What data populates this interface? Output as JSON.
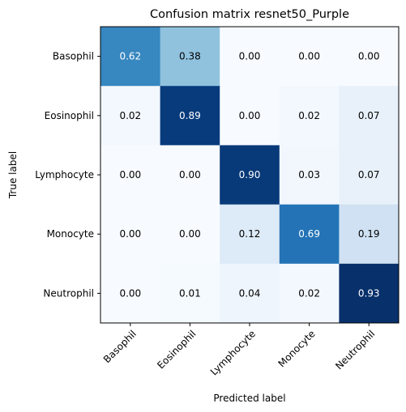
{
  "chart_data": {
    "type": "heatmap",
    "title": "Confusion matrix resnet50_Purple",
    "xlabel": "Predicted label",
    "ylabel": "True label",
    "x_categories": [
      "Basophil",
      "Eosinophil",
      "Lymphocyte",
      "Monocyte",
      "Neutrophil"
    ],
    "y_categories": [
      "Basophil",
      "Eosinophil",
      "Lymphocyte",
      "Monocyte",
      "Neutrophil"
    ],
    "values": [
      [
        0.62,
        0.38,
        0.0,
        0.0,
        0.0
      ],
      [
        0.02,
        0.89,
        0.0,
        0.02,
        0.07
      ],
      [
        0.0,
        0.0,
        0.9,
        0.03,
        0.07
      ],
      [
        0.0,
        0.0,
        0.12,
        0.69,
        0.19
      ],
      [
        0.0,
        0.01,
        0.04,
        0.02,
        0.93
      ]
    ],
    "value_labels": [
      [
        "0.62",
        "0.38",
        "0.00",
        "0.00",
        "0.00"
      ],
      [
        "0.02",
        "0.89",
        "0.00",
        "0.02",
        "0.07"
      ],
      [
        "0.00",
        "0.00",
        "0.90",
        "0.03",
        "0.07"
      ],
      [
        "0.00",
        "0.00",
        "0.12",
        "0.69",
        "0.19"
      ],
      [
        "0.00",
        "0.01",
        "0.04",
        "0.02",
        "0.93"
      ]
    ],
    "colormap": "Blues",
    "color_range": [
      0,
      0.93
    ],
    "grid": false,
    "x_tick_rotation_deg": 45
  }
}
